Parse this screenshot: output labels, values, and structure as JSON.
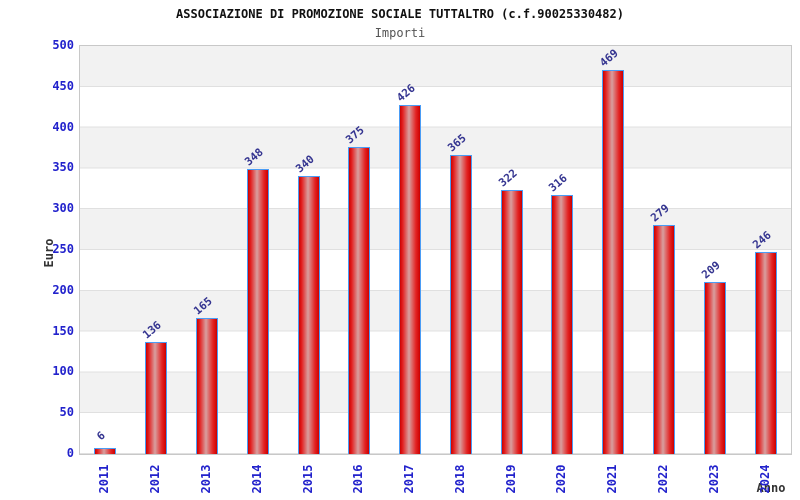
{
  "header": {
    "title": "ASSOCIAZIONE DI PROMOZIONE SOCIALE TUTTALTRO (c.f.90025330482)",
    "subtitle": "Importi"
  },
  "chart_data": {
    "type": "bar",
    "title": "ASSOCIAZIONE DI PROMOZIONE SOCIALE TUTTALTRO (c.f.90025330482)",
    "subtitle": "Importi",
    "xlabel": "Anno",
    "ylabel": "Euro",
    "categories": [
      "2011",
      "2012",
      "2013",
      "2014",
      "2015",
      "2016",
      "2017",
      "2018",
      "2019",
      "2020",
      "2021",
      "2022",
      "2023",
      "2024"
    ],
    "values": [
      6,
      136,
      165,
      348,
      340,
      375,
      426,
      365,
      322,
      316,
      469,
      279,
      209,
      246
    ],
    "ylim": [
      0,
      500
    ],
    "yticks": [
      0,
      50,
      100,
      150,
      200,
      250,
      300,
      350,
      400,
      450,
      500
    ],
    "grid": "horizontal-bands",
    "legend": "none",
    "bar_labels_shown": true
  },
  "colors": {
    "title_color": "#111111",
    "subtitle_color": "#555555",
    "tick_color": "#2222cc",
    "value_color": "#343490",
    "axis_title_color": "#333333",
    "plot_border": "#c8c8c8",
    "grid_line": "#e0e0e0",
    "band_gray": "#f2f2f2",
    "band_white": "#ffffff",
    "bar_border": "#4a9cf5",
    "bar_edge": "#cc0000",
    "bar_red": "#e32222",
    "bar_light": "#d89f9f"
  }
}
